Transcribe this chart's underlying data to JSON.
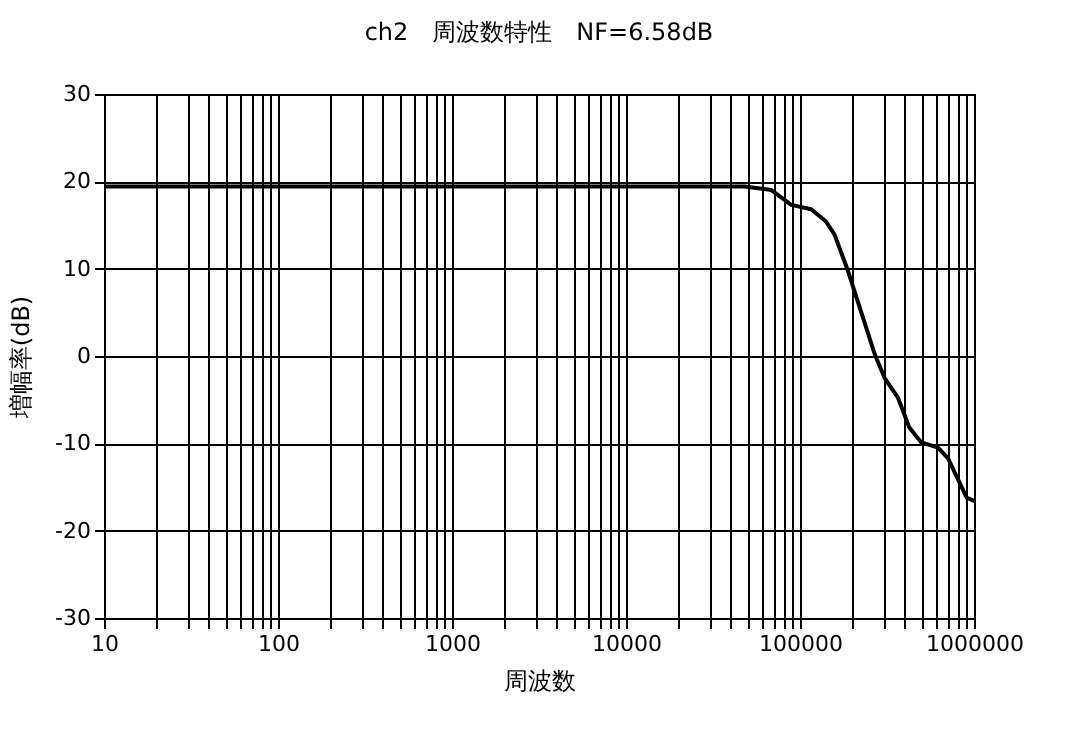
{
  "chart_data": {
    "type": "line",
    "title": "ch2　周波数特性　NF=6.58dB",
    "xlabel": "周波数",
    "ylabel": "増幅率(dB)",
    "log": "x",
    "grid": true,
    "marker": "none",
    "line_style": "solid",
    "xlim": [
      10,
      1000000
    ],
    "ylim": [
      -30,
      30
    ],
    "yticks": [
      -30,
      -20,
      -10,
      0,
      10,
      20,
      30
    ],
    "xticks": [
      10,
      {
        "value": 20,
        "label": null
      },
      {
        "value": 30,
        "label": null
      },
      {
        "value": 40,
        "label": null
      },
      {
        "value": 50,
        "label": null
      },
      {
        "value": 60,
        "label": null
      },
      {
        "value": 70,
        "label": null
      },
      {
        "value": 80,
        "label": null
      },
      {
        "value": 90,
        "label": null
      },
      100,
      {
        "value": 200,
        "label": null
      },
      {
        "value": 300,
        "label": null
      },
      {
        "value": 400,
        "label": null
      },
      {
        "value": 500,
        "label": null
      },
      {
        "value": 600,
        "label": null
      },
      {
        "value": 700,
        "label": null
      },
      {
        "value": 800,
        "label": null
      },
      {
        "value": 900,
        "label": null
      },
      1000,
      {
        "value": 2000,
        "label": null
      },
      {
        "value": 3000,
        "label": null
      },
      {
        "value": 4000,
        "label": null
      },
      {
        "value": 5000,
        "label": null
      },
      {
        "value": 6000,
        "label": null
      },
      {
        "value": 7000,
        "label": null
      },
      {
        "value": 8000,
        "label": null
      },
      {
        "value": 9000,
        "label": null
      },
      10000,
      {
        "value": 20000,
        "label": null
      },
      {
        "value": 30000,
        "label": null
      },
      {
        "value": 40000,
        "label": null
      },
      {
        "value": 50000,
        "label": null
      },
      {
        "value": 60000,
        "label": null
      },
      {
        "value": 70000,
        "label": null
      },
      {
        "value": 80000,
        "label": null
      },
      {
        "value": 90000,
        "label": null
      },
      100000,
      {
        "value": 200000,
        "label": null
      },
      {
        "value": 300000,
        "label": null
      },
      {
        "value": 400000,
        "label": null
      },
      {
        "value": 500000,
        "label": null
      },
      {
        "value": 600000,
        "label": null
      },
      {
        "value": 700000,
        "label": null
      },
      {
        "value": 800000,
        "label": null
      },
      {
        "value": 900000,
        "label": null
      },
      1000000
    ],
    "x": [
      10,
      48000,
      68500,
      89000,
      116000,
      141000,
      158000,
      189000,
      225000,
      269000,
      306000,
      366000,
      425000,
      498000,
      621000,
      708000,
      906000,
      1000000
    ],
    "series": [
      {
        "color": "#000000",
        "values": [
          19.4,
          19.4,
          19.0,
          17.3,
          16.8,
          15.4,
          13.9,
          9.7,
          5.0,
          0.2,
          -2.5,
          -4.8,
          -8.2,
          -9.9,
          -10.5,
          -11.7,
          -16.2,
          -16.6
        ]
      }
    ]
  }
}
